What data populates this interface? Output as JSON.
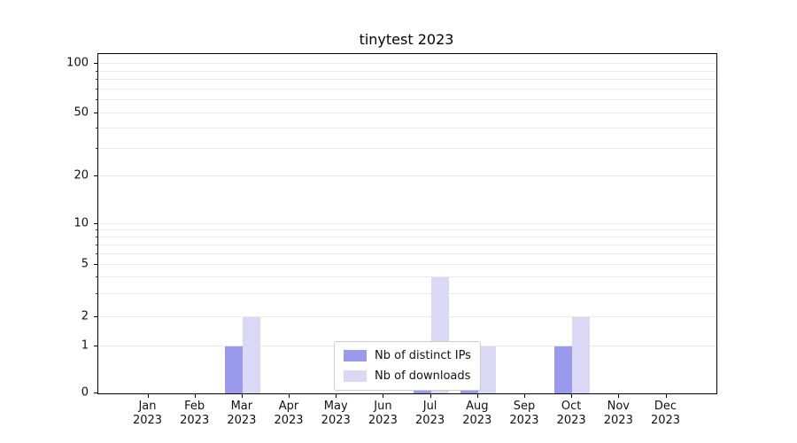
{
  "chart_data": {
    "type": "bar",
    "title": "tinytest 2023",
    "categories": [
      "Jan 2023",
      "Feb 2023",
      "Mar 2023",
      "Apr 2023",
      "May 2023",
      "Jun 2023",
      "Jul 2023",
      "Aug 2023",
      "Sep 2023",
      "Oct 2023",
      "Nov 2023",
      "Dec 2023"
    ],
    "series": [
      {
        "name": "Nb of distinct IPs",
        "color": "#9a9aec",
        "values": [
          0,
          0,
          1,
          0,
          0,
          0,
          1,
          1,
          0,
          1,
          0,
          0
        ]
      },
      {
        "name": "Nb of downloads",
        "color": "#d9d9f6",
        "values": [
          0,
          0,
          2,
          0,
          0,
          0,
          4,
          1,
          0,
          2,
          0,
          0
        ]
      }
    ],
    "y_ticks": [
      0,
      1,
      2,
      5,
      10,
      20,
      50,
      100
    ],
    "y_minor_gridlines": [
      3,
      4,
      6,
      7,
      8,
      9,
      30,
      40,
      60,
      70,
      80,
      90
    ],
    "ylim": [
      0,
      110
    ],
    "xlabel": "",
    "ylabel": "",
    "scale": "symlog",
    "grid": "horizontal",
    "legend_position": "lower center"
  }
}
